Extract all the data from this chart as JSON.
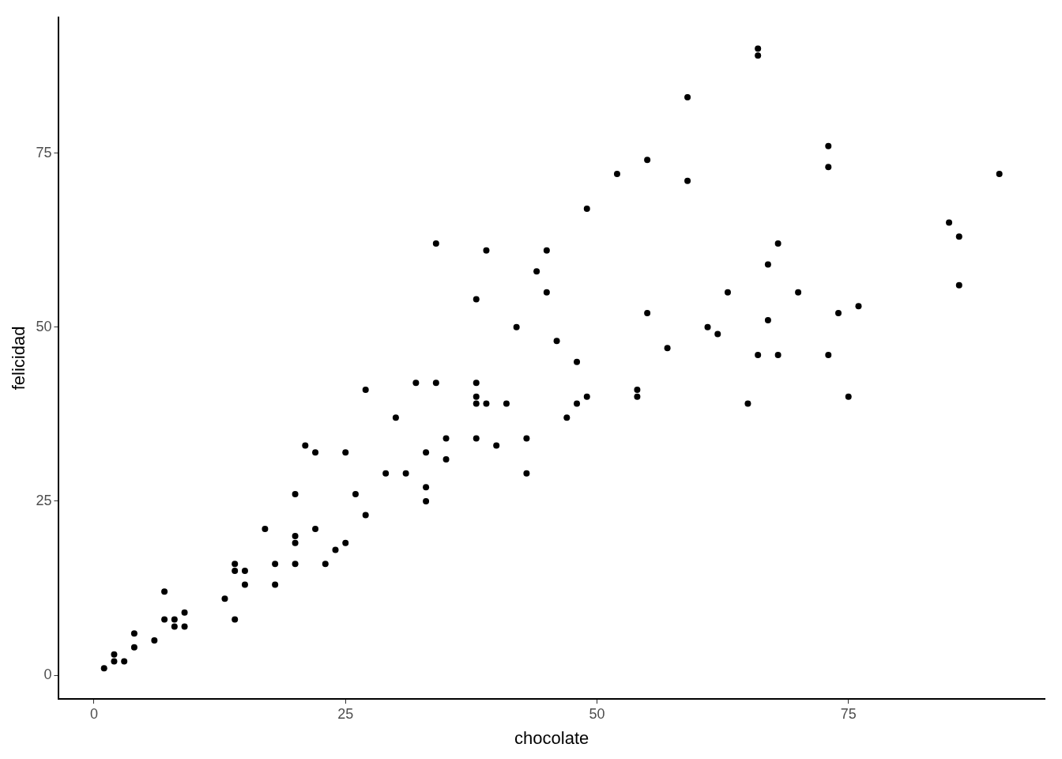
{
  "chart_data": {
    "type": "scatter",
    "xlabel": "chocolate",
    "ylabel": "felicidad",
    "xlim": [
      -3.5,
      94.5
    ],
    "ylim": [
      -3.4,
      94.5
    ],
    "xticks": [
      0,
      25,
      50,
      75
    ],
    "yticks": [
      0,
      25,
      50,
      75
    ],
    "grid": false,
    "legend": false,
    "marker": "circle",
    "x": [
      1,
      2,
      2,
      3,
      4,
      4,
      6,
      7,
      7,
      8,
      8,
      9,
      9,
      13,
      14,
      14,
      14,
      15,
      15,
      17,
      18,
      18,
      20,
      20,
      20,
      20,
      21,
      22,
      22,
      23,
      24,
      25,
      25,
      26,
      27,
      27,
      29,
      30,
      31,
      32,
      33,
      33,
      33,
      34,
      34,
      35,
      35,
      38,
      38,
      38,
      38,
      38,
      39,
      39,
      40,
      41,
      42,
      43,
      43,
      44,
      45,
      45,
      46,
      47,
      48,
      48,
      49,
      49,
      52,
      54,
      54,
      55,
      55,
      57,
      59,
      59,
      61,
      62,
      63,
      65,
      66,
      66,
      66,
      67,
      67,
      68,
      68,
      70,
      73,
      73,
      73,
      74,
      75,
      76,
      85,
      86,
      86,
      90
    ],
    "series": [
      {
        "color": "#000000",
        "values": [
          1,
          3,
          2,
          2,
          4,
          6,
          5,
          12,
          8,
          8,
          7,
          7,
          9,
          11,
          16,
          15,
          8,
          15,
          13,
          21,
          16,
          13,
          26,
          20,
          19,
          16,
          33,
          32,
          21,
          16,
          18,
          32,
          19,
          26,
          41,
          23,
          29,
          37,
          29,
          42,
          32,
          27,
          25,
          62,
          42,
          34,
          31,
          54,
          42,
          40,
          39,
          34,
          61,
          39,
          33,
          39,
          50,
          34,
          29,
          58,
          61,
          55,
          48,
          37,
          45,
          39,
          67,
          40,
          72,
          41,
          40,
          74,
          52,
          47,
          83,
          71,
          50,
          49,
          55,
          39,
          90,
          89,
          46,
          59,
          51,
          62,
          46,
          55,
          76,
          73,
          46,
          52,
          40,
          53,
          65,
          63,
          56,
          72
        ]
      }
    ]
  }
}
